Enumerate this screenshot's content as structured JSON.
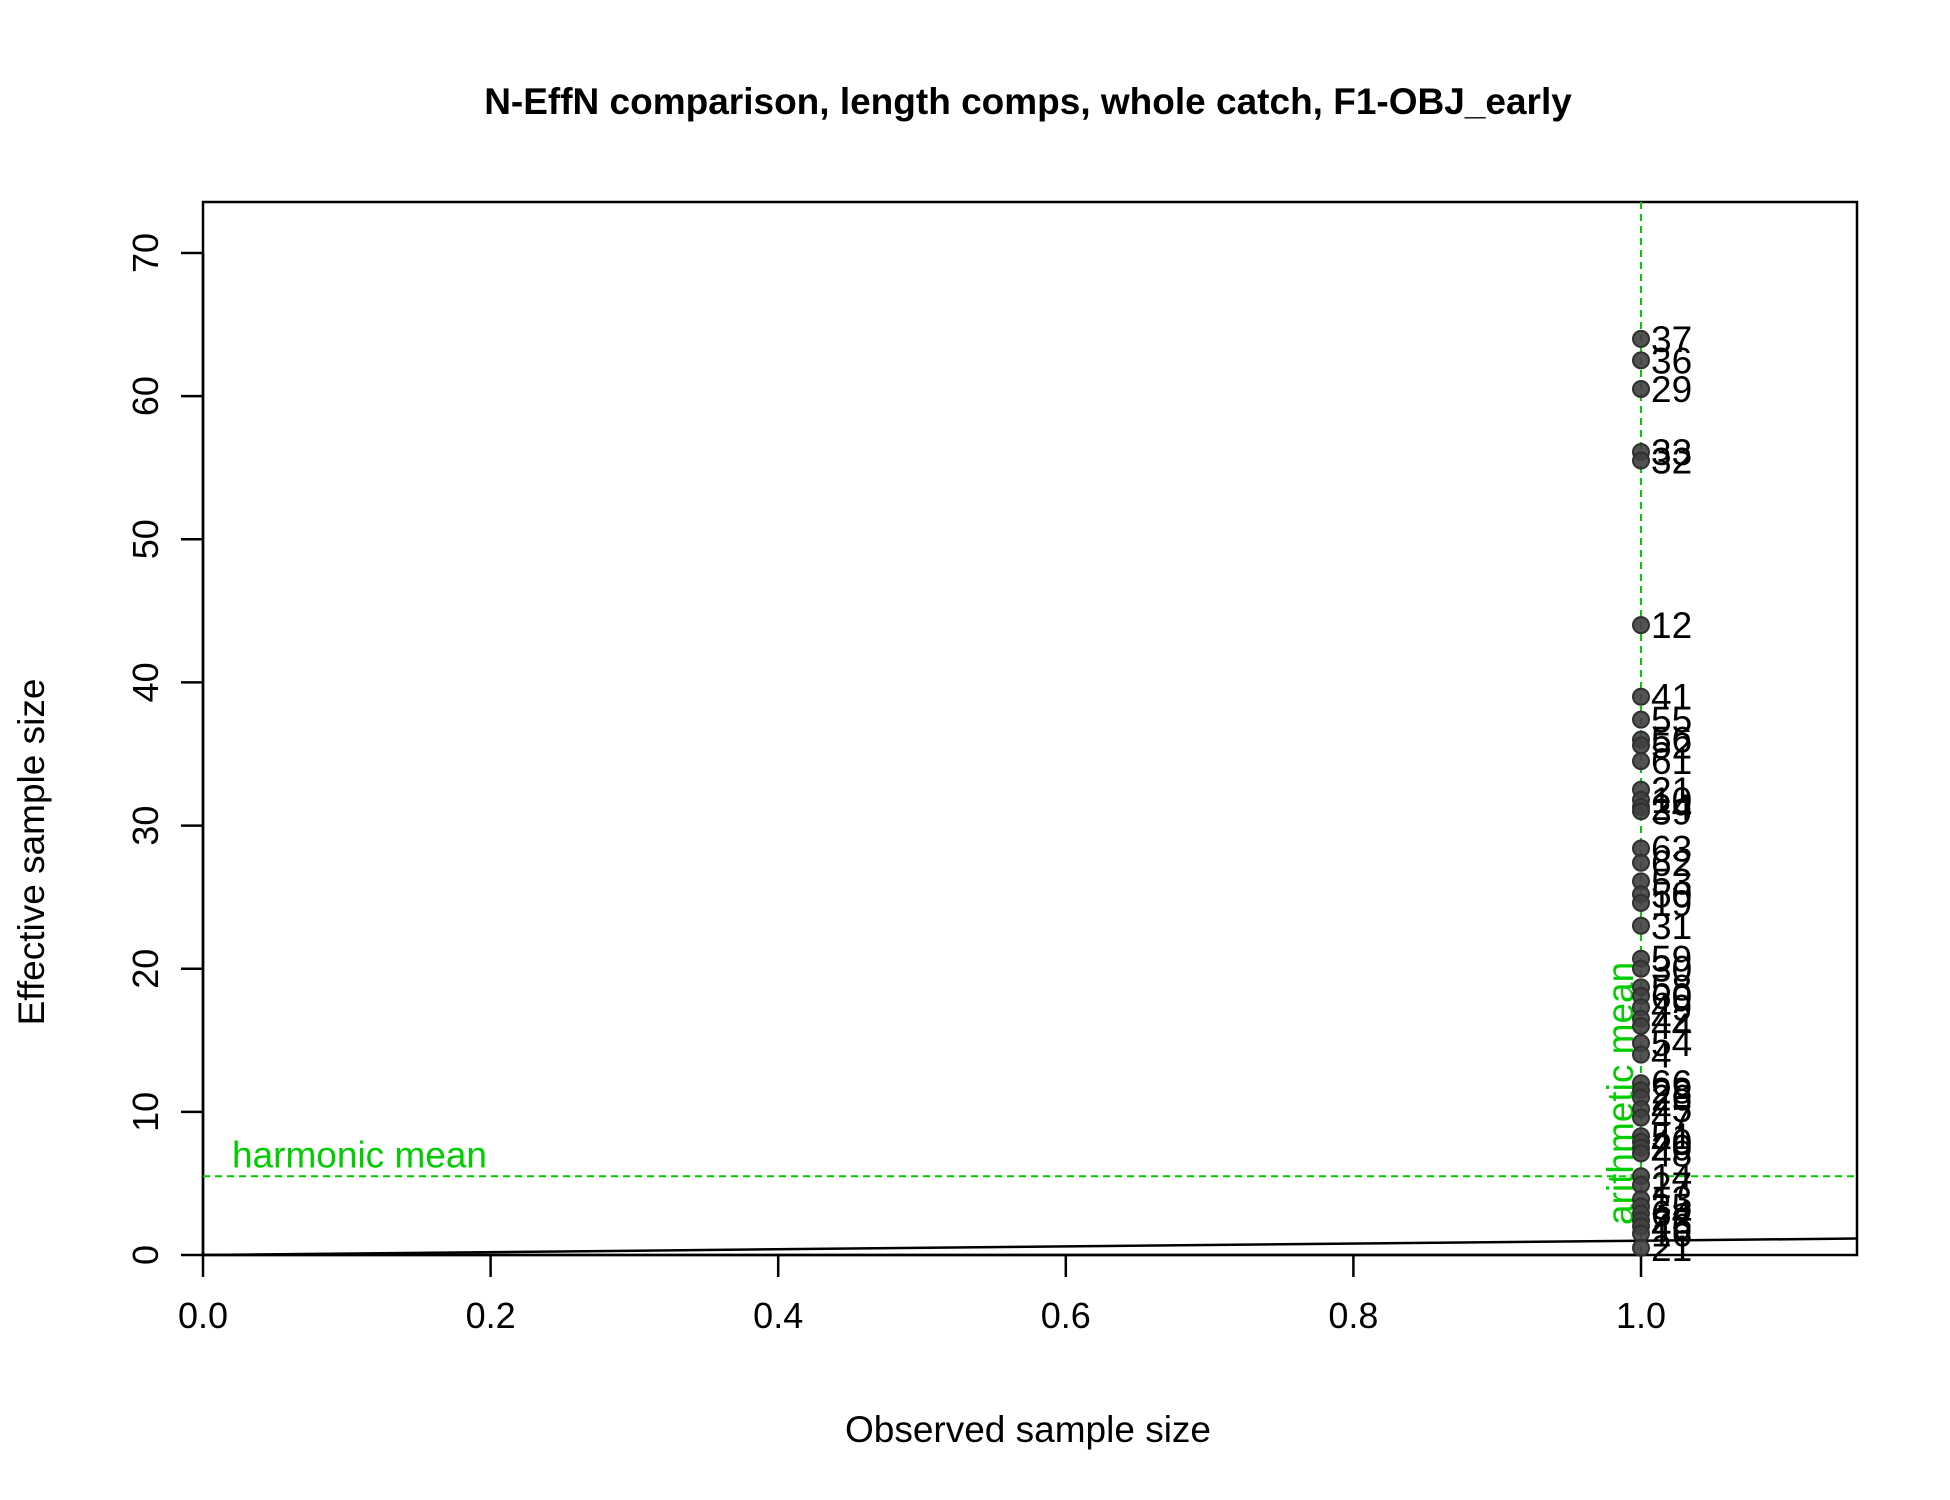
{
  "chart_data": {
    "type": "scatter",
    "title": "N-EffN comparison, length comps, whole catch, F1-OBJ_early",
    "xlabel": "Observed sample size",
    "ylabel": "Effective sample size",
    "xlim": [
      0,
      1.15
    ],
    "ylim": [
      0,
      70
    ],
    "x_ticks": [
      "0.0",
      "0.2",
      "0.4",
      "0.6",
      "0.8",
      "1.0"
    ],
    "y_ticks": [
      "0",
      "10",
      "20",
      "30",
      "40",
      "50",
      "60",
      "70"
    ],
    "grid": false,
    "points": [
      {
        "x": 1.0,
        "y": 64.0,
        "label": "37"
      },
      {
        "x": 1.0,
        "y": 62.5,
        "label": "36"
      },
      {
        "x": 1.0,
        "y": 60.5,
        "label": "29"
      },
      {
        "x": 1.0,
        "y": 56.1,
        "label": "33"
      },
      {
        "x": 1.0,
        "y": 55.5,
        "label": "32"
      },
      {
        "x": 1.0,
        "y": 44.0,
        "label": "12"
      },
      {
        "x": 1.0,
        "y": 39.0,
        "label": "41"
      },
      {
        "x": 1.0,
        "y": 37.4,
        "label": "55"
      },
      {
        "x": 1.0,
        "y": 36.0,
        "label": "56"
      },
      {
        "x": 1.0,
        "y": 35.6,
        "label": "52"
      },
      {
        "x": 1.0,
        "y": 34.5,
        "label": "61"
      },
      {
        "x": 1.0,
        "y": 32.5,
        "label": "21"
      },
      {
        "x": 1.0,
        "y": 31.8,
        "label": "10"
      },
      {
        "x": 1.0,
        "y": 31.3,
        "label": "24"
      },
      {
        "x": 1.0,
        "y": 31.0,
        "label": "39"
      },
      {
        "x": 1.0,
        "y": 28.4,
        "label": "63"
      },
      {
        "x": 1.0,
        "y": 27.4,
        "label": "62"
      },
      {
        "x": 1.0,
        "y": 26.1,
        "label": "53"
      },
      {
        "x": 1.0,
        "y": 25.2,
        "label": "50"
      },
      {
        "x": 1.0,
        "y": 24.6,
        "label": "19"
      },
      {
        "x": 1.0,
        "y": 23.0,
        "label": "31"
      },
      {
        "x": 1.0,
        "y": 20.7,
        "label": "59"
      },
      {
        "x": 1.0,
        "y": 20.0,
        "label": "30"
      },
      {
        "x": 1.0,
        "y": 18.7,
        "label": "58"
      },
      {
        "x": 1.0,
        "y": 18.1,
        "label": "60"
      },
      {
        "x": 1.0,
        "y": 17.3,
        "label": "49"
      },
      {
        "x": 1.0,
        "y": 16.5,
        "label": "42"
      },
      {
        "x": 1.0,
        "y": 16.0,
        "label": "44"
      },
      {
        "x": 1.0,
        "y": 14.8,
        "label": "54"
      },
      {
        "x": 1.0,
        "y": 14.0,
        "label": "4"
      },
      {
        "x": 1.0,
        "y": 12.0,
        "label": "66"
      },
      {
        "x": 1.0,
        "y": 11.5,
        "label": "28"
      },
      {
        "x": 1.0,
        "y": 11.0,
        "label": "26"
      },
      {
        "x": 1.0,
        "y": 10.2,
        "label": "45"
      },
      {
        "x": 1.0,
        "y": 9.6,
        "label": "47"
      },
      {
        "x": 1.0,
        "y": 8.3,
        "label": "51"
      },
      {
        "x": 1.0,
        "y": 7.9,
        "label": "40"
      },
      {
        "x": 1.0,
        "y": 7.5,
        "label": "20"
      },
      {
        "x": 1.0,
        "y": 7.1,
        "label": "48"
      },
      {
        "x": 1.0,
        "y": 5.5,
        "label": "14"
      },
      {
        "x": 1.0,
        "y": 4.9,
        "label": "27"
      },
      {
        "x": 1.0,
        "y": 3.9,
        "label": "13"
      },
      {
        "x": 1.0,
        "y": 3.4,
        "label": "35"
      },
      {
        "x": 1.0,
        "y": 2.9,
        "label": "64"
      },
      {
        "x": 1.0,
        "y": 2.4,
        "label": "23"
      },
      {
        "x": 1.0,
        "y": 2.0,
        "label": "46"
      },
      {
        "x": 1.0,
        "y": 1.5,
        "label": "16"
      },
      {
        "x": 1.0,
        "y": 0.5,
        "label": "21"
      }
    ],
    "point_color": "#404040",
    "reference_lines": {
      "diagonal": {
        "slope": 1,
        "color": "#000000"
      },
      "harmonic_mean": {
        "y": 5.5,
        "label": "harmonic mean",
        "color": "#00cc00"
      },
      "arithmetic_mean": {
        "x": 1.0,
        "label": "arithmetic mean",
        "color": "#00cc00"
      }
    }
  }
}
